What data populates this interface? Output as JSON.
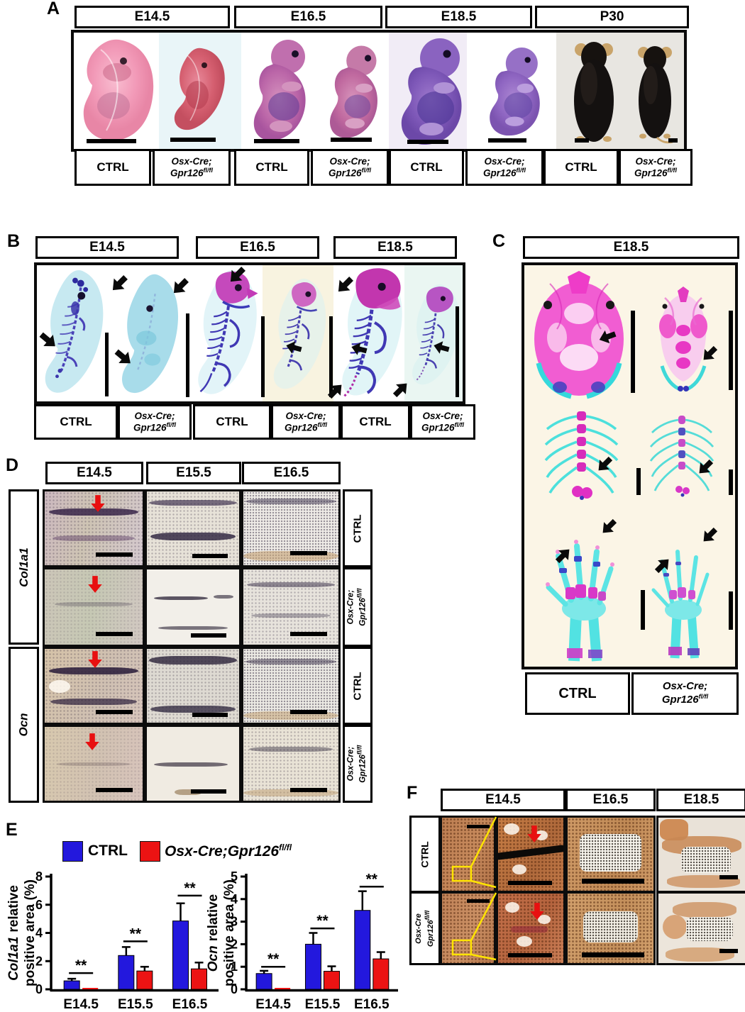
{
  "shared": {
    "ctrl": "CTRL",
    "mut1": "Osx-Cre;",
    "mut2": "Gpr126",
    "mut_sup": "fl/fl"
  },
  "panel_a": {
    "letter": "A",
    "timepoints": [
      "E14.5",
      "E16.5",
      "E18.5",
      "P30"
    ]
  },
  "panel_b": {
    "letter": "B",
    "timepoints": [
      "E14.5",
      "E16.5",
      "E18.5"
    ]
  },
  "panel_c": {
    "letter": "C",
    "timepoint": "E18.5"
  },
  "panel_d": {
    "letter": "D",
    "timepoints": [
      "E14.5",
      "E15.5",
      "E16.5"
    ],
    "genes": [
      "Col1a1",
      "Ocn"
    ]
  },
  "panel_e": {
    "letter": "E",
    "legend": {
      "ctrl": "CTRL",
      "mutant_italic": "Osx-Cre;Gpr126",
      "mutant_sup": "fl/fl"
    }
  },
  "panel_f": {
    "letter": "F",
    "timepoints": [
      "E14.5",
      "E16.5",
      "E18.5"
    ],
    "mut1": "Osx-Cre",
    "mut2": "Gpr126",
    "mut_sup": "fl/fl"
  },
  "chart_data": [
    {
      "type": "bar",
      "ylabel_italic": "Col1a1",
      "ylabel_line1_rest": "relative",
      "ylabel_line2": "positive area (%)",
      "categories": [
        "E14.5",
        "E15.5",
        "E16.5"
      ],
      "ylim": [
        0,
        8
      ],
      "yticks": [
        0,
        2,
        4,
        6,
        8
      ],
      "grid": false,
      "legend_position": "top",
      "series": [
        {
          "name": "CTRL",
          "color": "#2318dd",
          "values": [
            0.6,
            2.4,
            4.85
          ],
          "errors": [
            0.15,
            0.6,
            1.25
          ]
        },
        {
          "name": "Osx-Cre;Gpr126 fl/fl",
          "color": "#ec1313",
          "values": [
            0.03,
            1.3,
            1.45
          ],
          "errors": [
            0,
            0.3,
            0.45
          ]
        }
      ],
      "significance": {
        "label": "**",
        "y": [
          1.15,
          3.4,
          6.65
        ]
      }
    },
    {
      "type": "bar",
      "ylabel_italic": "Ocn",
      "ylabel_line1_rest": "relative",
      "ylabel_line2": "positive area (%)",
      "categories": [
        "E14.5",
        "E15.5",
        "E16.5"
      ],
      "ylim": [
        0,
        5
      ],
      "yticks": [
        0,
        1,
        2,
        3,
        4,
        5
      ],
      "grid": false,
      "legend_position": "top",
      "series": [
        {
          "name": "CTRL",
          "color": "#2318dd",
          "values": [
            0.7,
            2.0,
            3.5
          ],
          "errors": [
            0.12,
            0.5,
            0.85
          ]
        },
        {
          "name": "Osx-Cre;Gpr126 fl/fl",
          "color": "#ec1313",
          "values": [
            0.03,
            0.8,
            1.35
          ],
          "errors": [
            0,
            0.22,
            0.3
          ]
        }
      ],
      "significance": {
        "label": "**",
        "y": [
          1.0,
          2.7,
          4.55
        ]
      }
    }
  ]
}
